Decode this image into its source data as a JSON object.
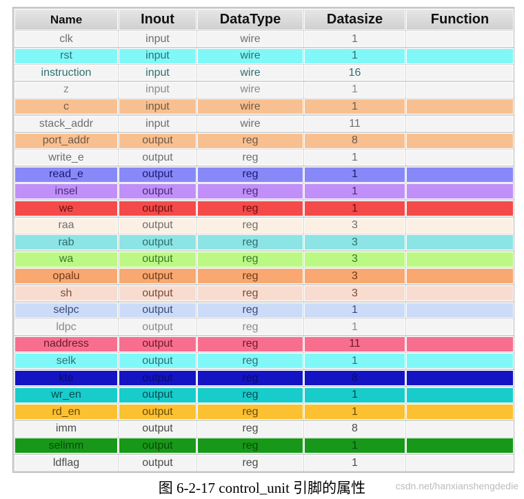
{
  "table": {
    "headers": [
      "Name",
      "Inout",
      "DataType",
      "Datasize",
      "Function"
    ],
    "rows": [
      {
        "name": "clk",
        "inout": "input",
        "type": "wire",
        "size": "1",
        "function": "",
        "bg": "#f4f4f4",
        "fg": "#6e6e6e"
      },
      {
        "name": "rst",
        "inout": "input",
        "type": "wire",
        "size": "1",
        "function": "",
        "bg": "#80f8f8",
        "fg": "#2f6f6f"
      },
      {
        "name": "instruction",
        "inout": "input",
        "type": "wire",
        "size": "16",
        "function": "",
        "bg": "#f4f4f4",
        "fg": "#2f6f6f"
      },
      {
        "name": "z",
        "inout": "input",
        "type": "wire",
        "size": "1",
        "function": "",
        "bg": "#f4f4f4",
        "fg": "#8a8a8a"
      },
      {
        "name": "c",
        "inout": "input",
        "type": "wire",
        "size": "1",
        "function": "",
        "bg": "#f8c090",
        "fg": "#6e5a4a"
      },
      {
        "name": "stack_addr",
        "inout": "input",
        "type": "wire",
        "size": "11",
        "function": "",
        "bg": "#f4f4f4",
        "fg": "#6e6e6e"
      },
      {
        "name": "port_addr",
        "inout": "output",
        "type": "reg",
        "size": "8",
        "function": "",
        "bg": "#f8c090",
        "fg": "#6e5a4a"
      },
      {
        "name": "write_e",
        "inout": "output",
        "type": "reg",
        "size": "1",
        "function": "",
        "bg": "#f4f4f4",
        "fg": "#6e6e6e"
      },
      {
        "name": "read_e",
        "inout": "output",
        "type": "reg",
        "size": "1",
        "function": "",
        "bg": "#8888f8",
        "fg": "#1a1a70"
      },
      {
        "name": "insel",
        "inout": "output",
        "type": "reg",
        "size": "1",
        "function": "",
        "bg": "#c090f8",
        "fg": "#4a2a78"
      },
      {
        "name": "we",
        "inout": "output",
        "type": "reg",
        "size": "1",
        "function": "",
        "bg": "#f44a4a",
        "fg": "#6a1010"
      },
      {
        "name": "raa",
        "inout": "output",
        "type": "reg",
        "size": "3",
        "function": "",
        "bg": "#fcf0e4",
        "fg": "#6e6e6e"
      },
      {
        "name": "rab",
        "inout": "output",
        "type": "reg",
        "size": "3",
        "function": "",
        "bg": "#8ce4e4",
        "fg": "#2f6f6f"
      },
      {
        "name": "wa",
        "inout": "output",
        "type": "reg",
        "size": "3",
        "function": "",
        "bg": "#bcf884",
        "fg": "#3a7a2a"
      },
      {
        "name": "opalu",
        "inout": "output",
        "type": "reg",
        "size": "3",
        "function": "",
        "bg": "#f8a870",
        "fg": "#6e3a1a"
      },
      {
        "name": "sh",
        "inout": "output",
        "type": "reg",
        "size": "3",
        "function": "",
        "bg": "#f8dcd0",
        "fg": "#7a4a3a"
      },
      {
        "name": "selpc",
        "inout": "output",
        "type": "reg",
        "size": "1",
        "function": "",
        "bg": "#ccdcf8",
        "fg": "#3a4a7a"
      },
      {
        "name": "ldpc",
        "inout": "output",
        "type": "reg",
        "size": "1",
        "function": "",
        "bg": "#f4f4f4",
        "fg": "#8a8a8a"
      },
      {
        "name": "naddress",
        "inout": "output",
        "type": "reg",
        "size": "11",
        "function": "",
        "bg": "#f86e8e",
        "fg": "#6a1a2a"
      },
      {
        "name": "selk",
        "inout": "output",
        "type": "reg",
        "size": "1",
        "function": "",
        "bg": "#80f8f8",
        "fg": "#2f6f6f"
      },
      {
        "name": "kte",
        "inout": "output",
        "type": "reg",
        "size": "8",
        "function": "",
        "bg": "#1414c4",
        "fg": "#0a0a70"
      },
      {
        "name": "wr_en",
        "inout": "output",
        "type": "reg",
        "size": "1",
        "function": "",
        "bg": "#18cccc",
        "fg": "#0a4a4a"
      },
      {
        "name": "rd_en",
        "inout": "output",
        "type": "reg",
        "size": "1",
        "function": "",
        "bg": "#fcc030",
        "fg": "#6a4a0a"
      },
      {
        "name": "imm",
        "inout": "output",
        "type": "reg",
        "size": "8",
        "function": "",
        "bg": "#f4f4f4",
        "fg": "#4a4a4a"
      },
      {
        "name": "selimm",
        "inout": "output",
        "type": "reg",
        "size": "1",
        "function": "",
        "bg": "#189818",
        "fg": "#0a4a0a"
      },
      {
        "name": "ldflag",
        "inout": "output",
        "type": "reg",
        "size": "1",
        "function": "",
        "bg": "#f4f4f4",
        "fg": "#4a4a4a"
      }
    ]
  },
  "caption": "图 6-2-17 control_unit 引脚的属性",
  "watermark": "csdn.net/hanxianshengdedie"
}
